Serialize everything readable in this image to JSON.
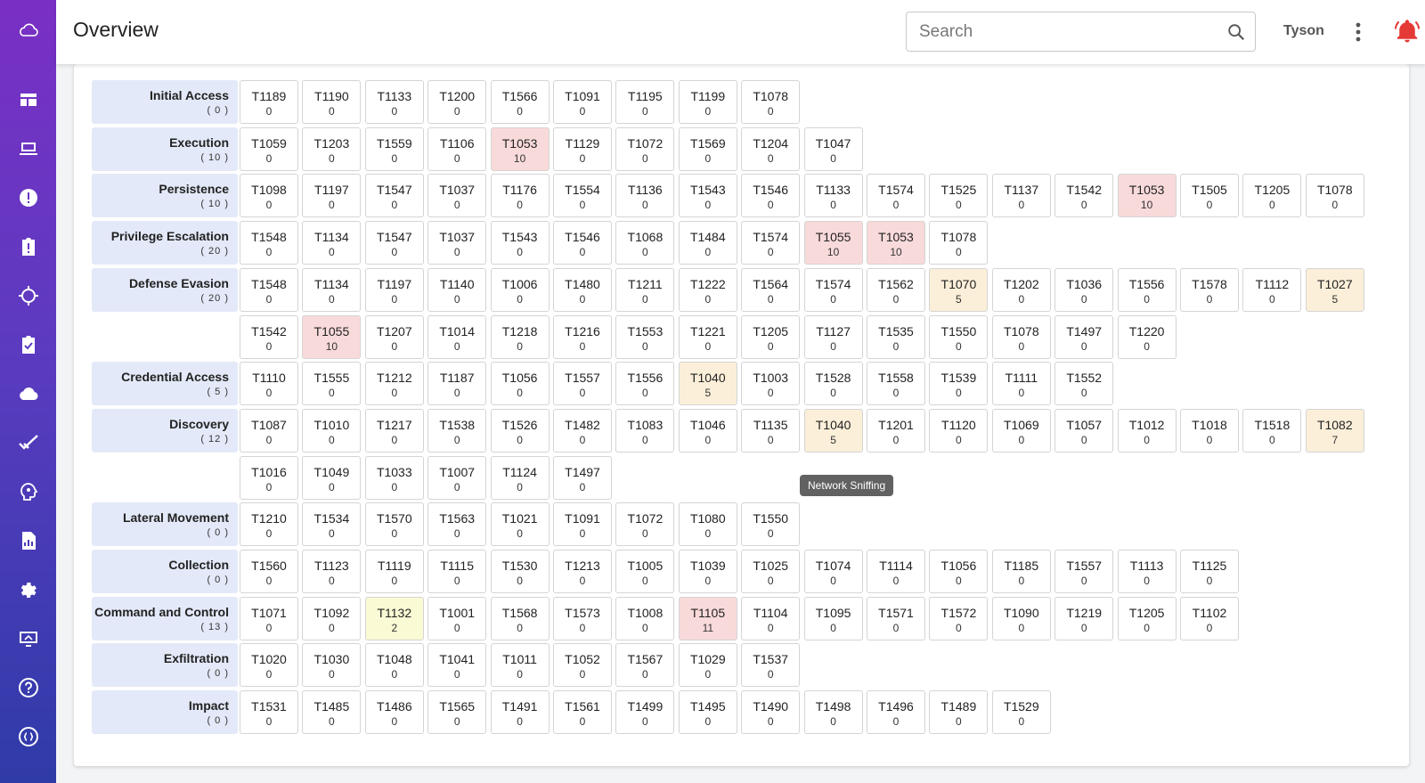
{
  "header": {
    "title": "Overview",
    "user": "Tyson",
    "search": {
      "placeholder": "Search",
      "value": ""
    }
  },
  "sidebar": {
    "items": [
      "cloud-logo-icon",
      "dashboard-icon",
      "devices-icon",
      "alerts-icon",
      "incidents-icon",
      "threat-hunt-icon",
      "tasks-icon",
      "cloud-icon",
      "checks-icon",
      "intelligence-icon",
      "reports-icon",
      "settings-icon",
      "remote-desktop-icon",
      "help-icon",
      "api-icon"
    ]
  },
  "tooltip": "Network Sniffing",
  "colors": {
    "red": "#f9dada",
    "orange": "#fcefd9",
    "yellow": "#fafad4",
    "tactic_bg": "#e3e9f8"
  },
  "matrix": [
    {
      "tactic": "Initial Access",
      "count": "( 0 )",
      "techniques": [
        [
          "T1189",
          "0"
        ],
        [
          "T1190",
          "0"
        ],
        [
          "T1133",
          "0"
        ],
        [
          "T1200",
          "0"
        ],
        [
          "T1566",
          "0"
        ],
        [
          "T1091",
          "0"
        ],
        [
          "T1195",
          "0"
        ],
        [
          "T1199",
          "0"
        ],
        [
          "T1078",
          "0"
        ]
      ]
    },
    {
      "tactic": "Execution",
      "count": "( 10 )",
      "techniques": [
        [
          "T1059",
          "0"
        ],
        [
          "T1203",
          "0"
        ],
        [
          "T1559",
          "0"
        ],
        [
          "T1106",
          "0"
        ],
        [
          "T1053",
          "10",
          "red"
        ],
        [
          "T1129",
          "0"
        ],
        [
          "T1072",
          "0"
        ],
        [
          "T1569",
          "0"
        ],
        [
          "T1204",
          "0"
        ],
        [
          "T1047",
          "0"
        ]
      ]
    },
    {
      "tactic": "Persistence",
      "count": "( 10 )",
      "techniques": [
        [
          "T1098",
          "0"
        ],
        [
          "T1197",
          "0"
        ],
        [
          "T1547",
          "0"
        ],
        [
          "T1037",
          "0"
        ],
        [
          "T1176",
          "0"
        ],
        [
          "T1554",
          "0"
        ],
        [
          "T1136",
          "0"
        ],
        [
          "T1543",
          "0"
        ],
        [
          "T1546",
          "0"
        ],
        [
          "T1133",
          "0"
        ],
        [
          "T1574",
          "0"
        ],
        [
          "T1525",
          "0"
        ],
        [
          "T1137",
          "0"
        ],
        [
          "T1542",
          "0"
        ],
        [
          "T1053",
          "10",
          "red"
        ],
        [
          "T1505",
          "0"
        ],
        [
          "T1205",
          "0"
        ],
        [
          "T1078",
          "0"
        ]
      ]
    },
    {
      "tactic": "Privilege Escalation",
      "count": "( 20 )",
      "techniques": [
        [
          "T1548",
          "0"
        ],
        [
          "T1134",
          "0"
        ],
        [
          "T1547",
          "0"
        ],
        [
          "T1037",
          "0"
        ],
        [
          "T1543",
          "0"
        ],
        [
          "T1546",
          "0"
        ],
        [
          "T1068",
          "0"
        ],
        [
          "T1484",
          "0"
        ],
        [
          "T1574",
          "0"
        ],
        [
          "T1055",
          "10",
          "red"
        ],
        [
          "T1053",
          "10",
          "red"
        ],
        [
          "T1078",
          "0"
        ]
      ]
    },
    {
      "tactic": "Defense Evasion",
      "count": "( 20 )",
      "techniques": [
        [
          "T1548",
          "0"
        ],
        [
          "T1134",
          "0"
        ],
        [
          "T1197",
          "0"
        ],
        [
          "T1140",
          "0"
        ],
        [
          "T1006",
          "0"
        ],
        [
          "T1480",
          "0"
        ],
        [
          "T1211",
          "0"
        ],
        [
          "T1222",
          "0"
        ],
        [
          "T1564",
          "0"
        ],
        [
          "T1574",
          "0"
        ],
        [
          "T1562",
          "0"
        ],
        [
          "T1070",
          "5",
          "orange"
        ],
        [
          "T1202",
          "0"
        ],
        [
          "T1036",
          "0"
        ],
        [
          "T1556",
          "0"
        ],
        [
          "T1578",
          "0"
        ],
        [
          "T1112",
          "0"
        ],
        [
          "T1027",
          "5",
          "orange"
        ]
      ]
    },
    {
      "tactic": "",
      "count": "",
      "techniques": [
        [
          "T1542",
          "0"
        ],
        [
          "T1055",
          "10",
          "red"
        ],
        [
          "T1207",
          "0"
        ],
        [
          "T1014",
          "0"
        ],
        [
          "T1218",
          "0"
        ],
        [
          "T1216",
          "0"
        ],
        [
          "T1553",
          "0"
        ],
        [
          "T1221",
          "0"
        ],
        [
          "T1205",
          "0"
        ],
        [
          "T1127",
          "0"
        ],
        [
          "T1535",
          "0"
        ],
        [
          "T1550",
          "0"
        ],
        [
          "T1078",
          "0"
        ],
        [
          "T1497",
          "0"
        ],
        [
          "T1220",
          "0"
        ]
      ]
    },
    {
      "tactic": "Credential Access",
      "count": "( 5 )",
      "techniques": [
        [
          "T1110",
          "0"
        ],
        [
          "T1555",
          "0"
        ],
        [
          "T1212",
          "0"
        ],
        [
          "T1187",
          "0"
        ],
        [
          "T1056",
          "0"
        ],
        [
          "T1557",
          "0"
        ],
        [
          "T1556",
          "0"
        ],
        [
          "T1040",
          "5",
          "orange"
        ],
        [
          "T1003",
          "0"
        ],
        [
          "T1528",
          "0"
        ],
        [
          "T1558",
          "0"
        ],
        [
          "T1539",
          "0"
        ],
        [
          "T1111",
          "0"
        ],
        [
          "T1552",
          "0"
        ]
      ]
    },
    {
      "tactic": "Discovery",
      "count": "( 12 )",
      "techniques": [
        [
          "T1087",
          "0"
        ],
        [
          "T1010",
          "0"
        ],
        [
          "T1217",
          "0"
        ],
        [
          "T1538",
          "0"
        ],
        [
          "T1526",
          "0"
        ],
        [
          "T1482",
          "0"
        ],
        [
          "T1083",
          "0"
        ],
        [
          "T1046",
          "0"
        ],
        [
          "T1135",
          "0"
        ],
        [
          "T1040",
          "5",
          "orange"
        ],
        [
          "T1201",
          "0"
        ],
        [
          "T1120",
          "0"
        ],
        [
          "T1069",
          "0"
        ],
        [
          "T1057",
          "0"
        ],
        [
          "T1012",
          "0"
        ],
        [
          "T1018",
          "0"
        ],
        [
          "T1518",
          "0"
        ],
        [
          "T1082",
          "7",
          "orange"
        ]
      ]
    },
    {
      "tactic": "",
      "count": "",
      "techniques": [
        [
          "T1016",
          "0"
        ],
        [
          "T1049",
          "0"
        ],
        [
          "T1033",
          "0"
        ],
        [
          "T1007",
          "0"
        ],
        [
          "T1124",
          "0"
        ],
        [
          "T1497",
          "0"
        ]
      ]
    },
    {
      "tactic": "Lateral Movement",
      "count": "( 0 )",
      "techniques": [
        [
          "T1210",
          "0"
        ],
        [
          "T1534",
          "0"
        ],
        [
          "T1570",
          "0"
        ],
        [
          "T1563",
          "0"
        ],
        [
          "T1021",
          "0"
        ],
        [
          "T1091",
          "0"
        ],
        [
          "T1072",
          "0"
        ],
        [
          "T1080",
          "0"
        ],
        [
          "T1550",
          "0"
        ]
      ]
    },
    {
      "tactic": "Collection",
      "count": "( 0 )",
      "techniques": [
        [
          "T1560",
          "0"
        ],
        [
          "T1123",
          "0"
        ],
        [
          "T1119",
          "0"
        ],
        [
          "T1115",
          "0"
        ],
        [
          "T1530",
          "0"
        ],
        [
          "T1213",
          "0"
        ],
        [
          "T1005",
          "0"
        ],
        [
          "T1039",
          "0"
        ],
        [
          "T1025",
          "0"
        ],
        [
          "T1074",
          "0"
        ],
        [
          "T1114",
          "0"
        ],
        [
          "T1056",
          "0"
        ],
        [
          "T1185",
          "0"
        ],
        [
          "T1557",
          "0"
        ],
        [
          "T1113",
          "0"
        ],
        [
          "T1125",
          "0"
        ]
      ]
    },
    {
      "tactic": "Command and Control",
      "count": "( 13 )",
      "techniques": [
        [
          "T1071",
          "0"
        ],
        [
          "T1092",
          "0"
        ],
        [
          "T1132",
          "2",
          "yellow"
        ],
        [
          "T1001",
          "0"
        ],
        [
          "T1568",
          "0"
        ],
        [
          "T1573",
          "0"
        ],
        [
          "T1008",
          "0"
        ],
        [
          "T1105",
          "11",
          "red"
        ],
        [
          "T1104",
          "0"
        ],
        [
          "T1095",
          "0"
        ],
        [
          "T1571",
          "0"
        ],
        [
          "T1572",
          "0"
        ],
        [
          "T1090",
          "0"
        ],
        [
          "T1219",
          "0"
        ],
        [
          "T1205",
          "0"
        ],
        [
          "T1102",
          "0"
        ]
      ]
    },
    {
      "tactic": "Exfiltration",
      "count": "( 0 )",
      "techniques": [
        [
          "T1020",
          "0"
        ],
        [
          "T1030",
          "0"
        ],
        [
          "T1048",
          "0"
        ],
        [
          "T1041",
          "0"
        ],
        [
          "T1011",
          "0"
        ],
        [
          "T1052",
          "0"
        ],
        [
          "T1567",
          "0"
        ],
        [
          "T1029",
          "0"
        ],
        [
          "T1537",
          "0"
        ]
      ]
    },
    {
      "tactic": "Impact",
      "count": "( 0 )",
      "techniques": [
        [
          "T1531",
          "0"
        ],
        [
          "T1485",
          "0"
        ],
        [
          "T1486",
          "0"
        ],
        [
          "T1565",
          "0"
        ],
        [
          "T1491",
          "0"
        ],
        [
          "T1561",
          "0"
        ],
        [
          "T1499",
          "0"
        ],
        [
          "T1495",
          "0"
        ],
        [
          "T1490",
          "0"
        ],
        [
          "T1498",
          "0"
        ],
        [
          "T1496",
          "0"
        ],
        [
          "T1489",
          "0"
        ],
        [
          "T1529",
          "0"
        ]
      ]
    }
  ]
}
